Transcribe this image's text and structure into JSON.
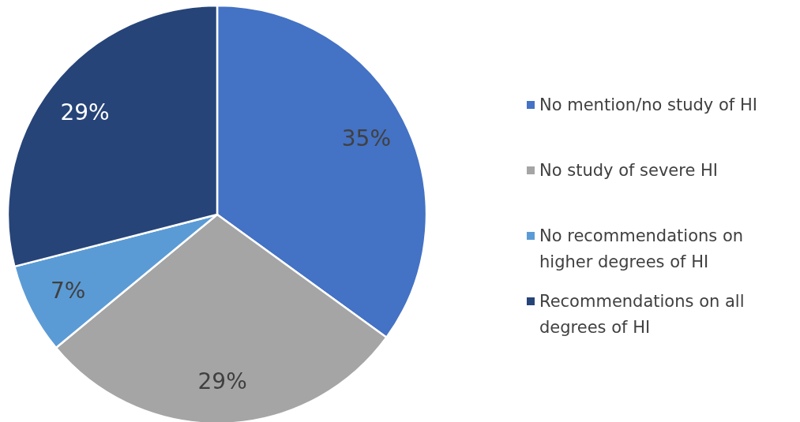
{
  "chart_data": {
    "type": "pie",
    "categories": [
      "No mention/no study of HI",
      "No study of severe HI",
      "No recommendations on higher degrees of HI",
      "Recommendations on all degrees of HI"
    ],
    "values": [
      35,
      29,
      7,
      29
    ],
    "colors": [
      "#4472c4",
      "#a5a5a5",
      "#5b9bd5",
      "#264478"
    ],
    "value_labels": [
      "35%",
      "29%",
      "7%",
      "29%"
    ],
    "legend": "right"
  }
}
